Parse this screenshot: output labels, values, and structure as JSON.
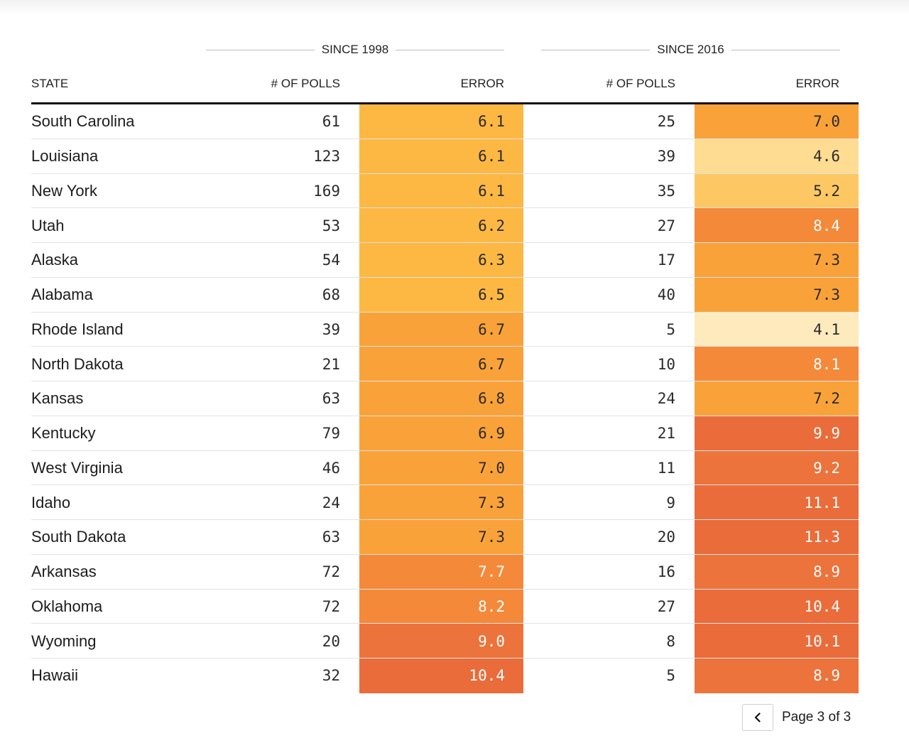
{
  "groups": {
    "g1998": "SINCE 1998",
    "g2016": "SINCE 2016"
  },
  "columns": {
    "state": "STATE",
    "polls_1998": "# OF POLLS",
    "error_1998": "ERROR",
    "polls_2016": "# OF POLLS",
    "error_2016": "ERROR"
  },
  "pagination": {
    "label": "Page 3 of 3",
    "prev_icon": "chevron-left-icon"
  },
  "colors": {
    "scale": [
      "#fdebbe",
      "#fedc92",
      "#fdc863",
      "#fdb844",
      "#faa23a",
      "#f4893a",
      "#ec733b",
      "#ea6c3b"
    ],
    "text_dark": "#2a2a2a",
    "text_light": "#ffffff"
  },
  "chart_data": {
    "type": "table",
    "rows": [
      {
        "state": "South Carolina",
        "polls_1998": "61",
        "error_1998": "6.1",
        "polls_2016": "25",
        "error_2016": "7.0"
      },
      {
        "state": "Louisiana",
        "polls_1998": "123",
        "error_1998": "6.1",
        "polls_2016": "39",
        "error_2016": "4.6"
      },
      {
        "state": "New York",
        "polls_1998": "169",
        "error_1998": "6.1",
        "polls_2016": "35",
        "error_2016": "5.2"
      },
      {
        "state": "Utah",
        "polls_1998": "53",
        "error_1998": "6.2",
        "polls_2016": "27",
        "error_2016": "8.4"
      },
      {
        "state": "Alaska",
        "polls_1998": "54",
        "error_1998": "6.3",
        "polls_2016": "17",
        "error_2016": "7.3"
      },
      {
        "state": "Alabama",
        "polls_1998": "68",
        "error_1998": "6.5",
        "polls_2016": "40",
        "error_2016": "7.3"
      },
      {
        "state": "Rhode Island",
        "polls_1998": "39",
        "error_1998": "6.7",
        "polls_2016": "5",
        "error_2016": "4.1"
      },
      {
        "state": "North Dakota",
        "polls_1998": "21",
        "error_1998": "6.7",
        "polls_2016": "10",
        "error_2016": "8.1"
      },
      {
        "state": "Kansas",
        "polls_1998": "63",
        "error_1998": "6.8",
        "polls_2016": "24",
        "error_2016": "7.2"
      },
      {
        "state": "Kentucky",
        "polls_1998": "79",
        "error_1998": "6.9",
        "polls_2016": "21",
        "error_2016": "9.9"
      },
      {
        "state": "West Virginia",
        "polls_1998": "46",
        "error_1998": "7.0",
        "polls_2016": "11",
        "error_2016": "9.2"
      },
      {
        "state": "Idaho",
        "polls_1998": "24",
        "error_1998": "7.3",
        "polls_2016": "9",
        "error_2016": "11.1"
      },
      {
        "state": "South Dakota",
        "polls_1998": "63",
        "error_1998": "7.3",
        "polls_2016": "20",
        "error_2016": "11.3"
      },
      {
        "state": "Arkansas",
        "polls_1998": "72",
        "error_1998": "7.7",
        "polls_2016": "16",
        "error_2016": "8.9"
      },
      {
        "state": "Oklahoma",
        "polls_1998": "72",
        "error_1998": "8.2",
        "polls_2016": "27",
        "error_2016": "10.4"
      },
      {
        "state": "Wyoming",
        "polls_1998": "20",
        "error_1998": "9.0",
        "polls_2016": "8",
        "error_2016": "10.1"
      },
      {
        "state": "Hawaii",
        "polls_1998": "32",
        "error_1998": "10.4",
        "polls_2016": "5",
        "error_2016": "8.9"
      }
    ]
  }
}
